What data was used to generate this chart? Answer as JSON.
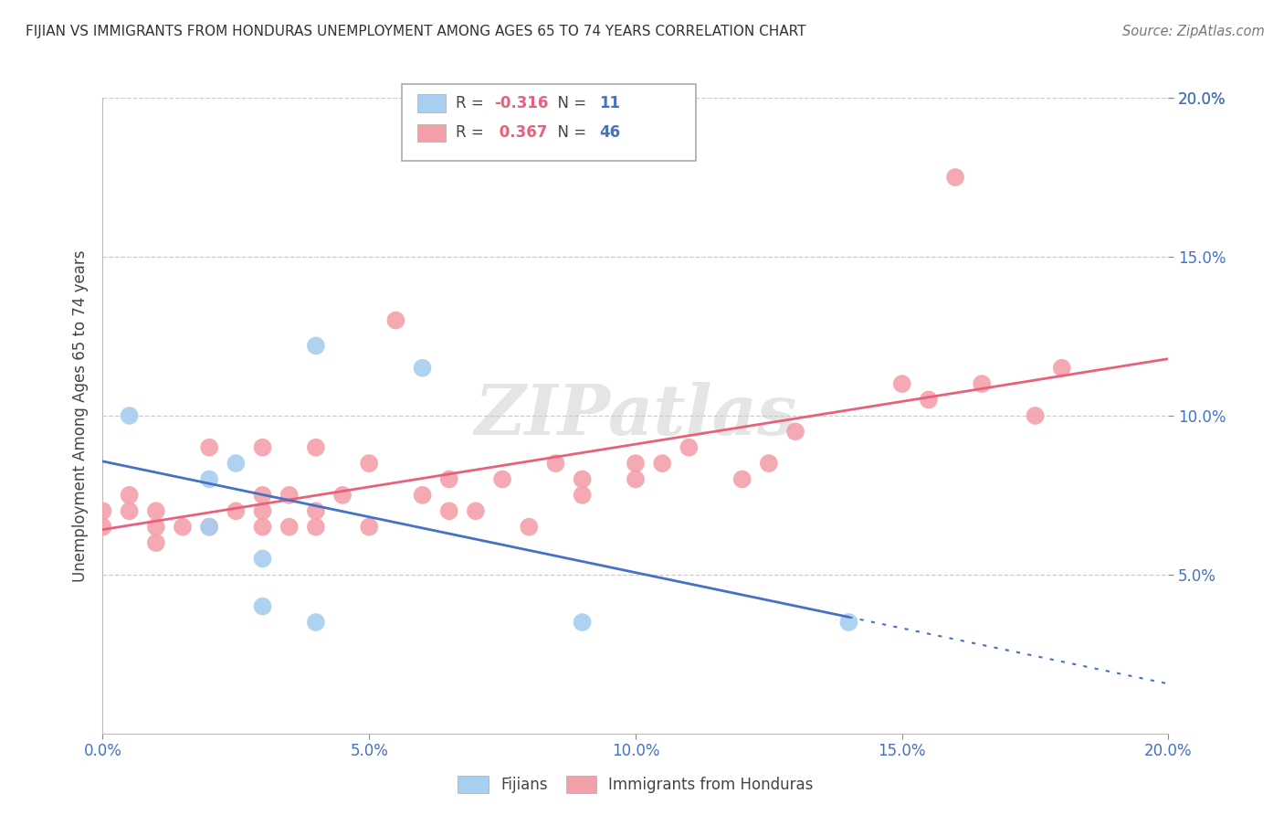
{
  "title": "FIJIAN VS IMMIGRANTS FROM HONDURAS UNEMPLOYMENT AMONG AGES 65 TO 74 YEARS CORRELATION CHART",
  "source": "Source: ZipAtlas.com",
  "ylabel": "Unemployment Among Ages 65 to 74 years",
  "xlim": [
    0.0,
    0.2
  ],
  "ylim": [
    0.0,
    0.2
  ],
  "xtick_vals": [
    0.0,
    0.05,
    0.1,
    0.15,
    0.2
  ],
  "xtick_labels": [
    "0.0%",
    "5.0%",
    "10.0%",
    "15.0%",
    "20.0%"
  ],
  "ytick_vals": [
    0.05,
    0.1,
    0.15,
    0.2
  ],
  "ytick_labels": [
    "5.0%",
    "10.0%",
    "15.0%",
    "20.0%"
  ],
  "fijian_color": "#A8CEF0",
  "honduras_color": "#F4A0AA",
  "fijian_line_color": "#4472C4",
  "honduras_line_color": "#E8607A",
  "fijian_R": -0.316,
  "fijian_N": 11,
  "honduras_R": 0.367,
  "honduras_N": 46,
  "fijian_x": [
    0.005,
    0.02,
    0.02,
    0.025,
    0.03,
    0.03,
    0.04,
    0.04,
    0.06,
    0.09,
    0.14
  ],
  "fijian_y": [
    0.1,
    0.065,
    0.08,
    0.085,
    0.055,
    0.04,
    0.035,
    0.122,
    0.115,
    0.035,
    0.035
  ],
  "honduras_x": [
    0.0,
    0.0,
    0.005,
    0.005,
    0.01,
    0.01,
    0.01,
    0.015,
    0.02,
    0.02,
    0.025,
    0.03,
    0.03,
    0.03,
    0.03,
    0.035,
    0.035,
    0.04,
    0.04,
    0.04,
    0.045,
    0.05,
    0.05,
    0.055,
    0.06,
    0.065,
    0.065,
    0.07,
    0.075,
    0.08,
    0.085,
    0.09,
    0.09,
    0.1,
    0.1,
    0.105,
    0.11,
    0.12,
    0.125,
    0.13,
    0.15,
    0.155,
    0.16,
    0.165,
    0.175,
    0.18
  ],
  "honduras_y": [
    0.065,
    0.07,
    0.07,
    0.075,
    0.06,
    0.065,
    0.07,
    0.065,
    0.065,
    0.09,
    0.07,
    0.065,
    0.07,
    0.075,
    0.09,
    0.065,
    0.075,
    0.065,
    0.07,
    0.09,
    0.075,
    0.065,
    0.085,
    0.13,
    0.075,
    0.07,
    0.08,
    0.07,
    0.08,
    0.065,
    0.085,
    0.075,
    0.08,
    0.08,
    0.085,
    0.085,
    0.09,
    0.08,
    0.085,
    0.095,
    0.11,
    0.105,
    0.175,
    0.11,
    0.1,
    0.115
  ],
  "watermark": "ZIPatlas",
  "background_color": "#FFFFFF",
  "grid_color": "#CCCCCC"
}
